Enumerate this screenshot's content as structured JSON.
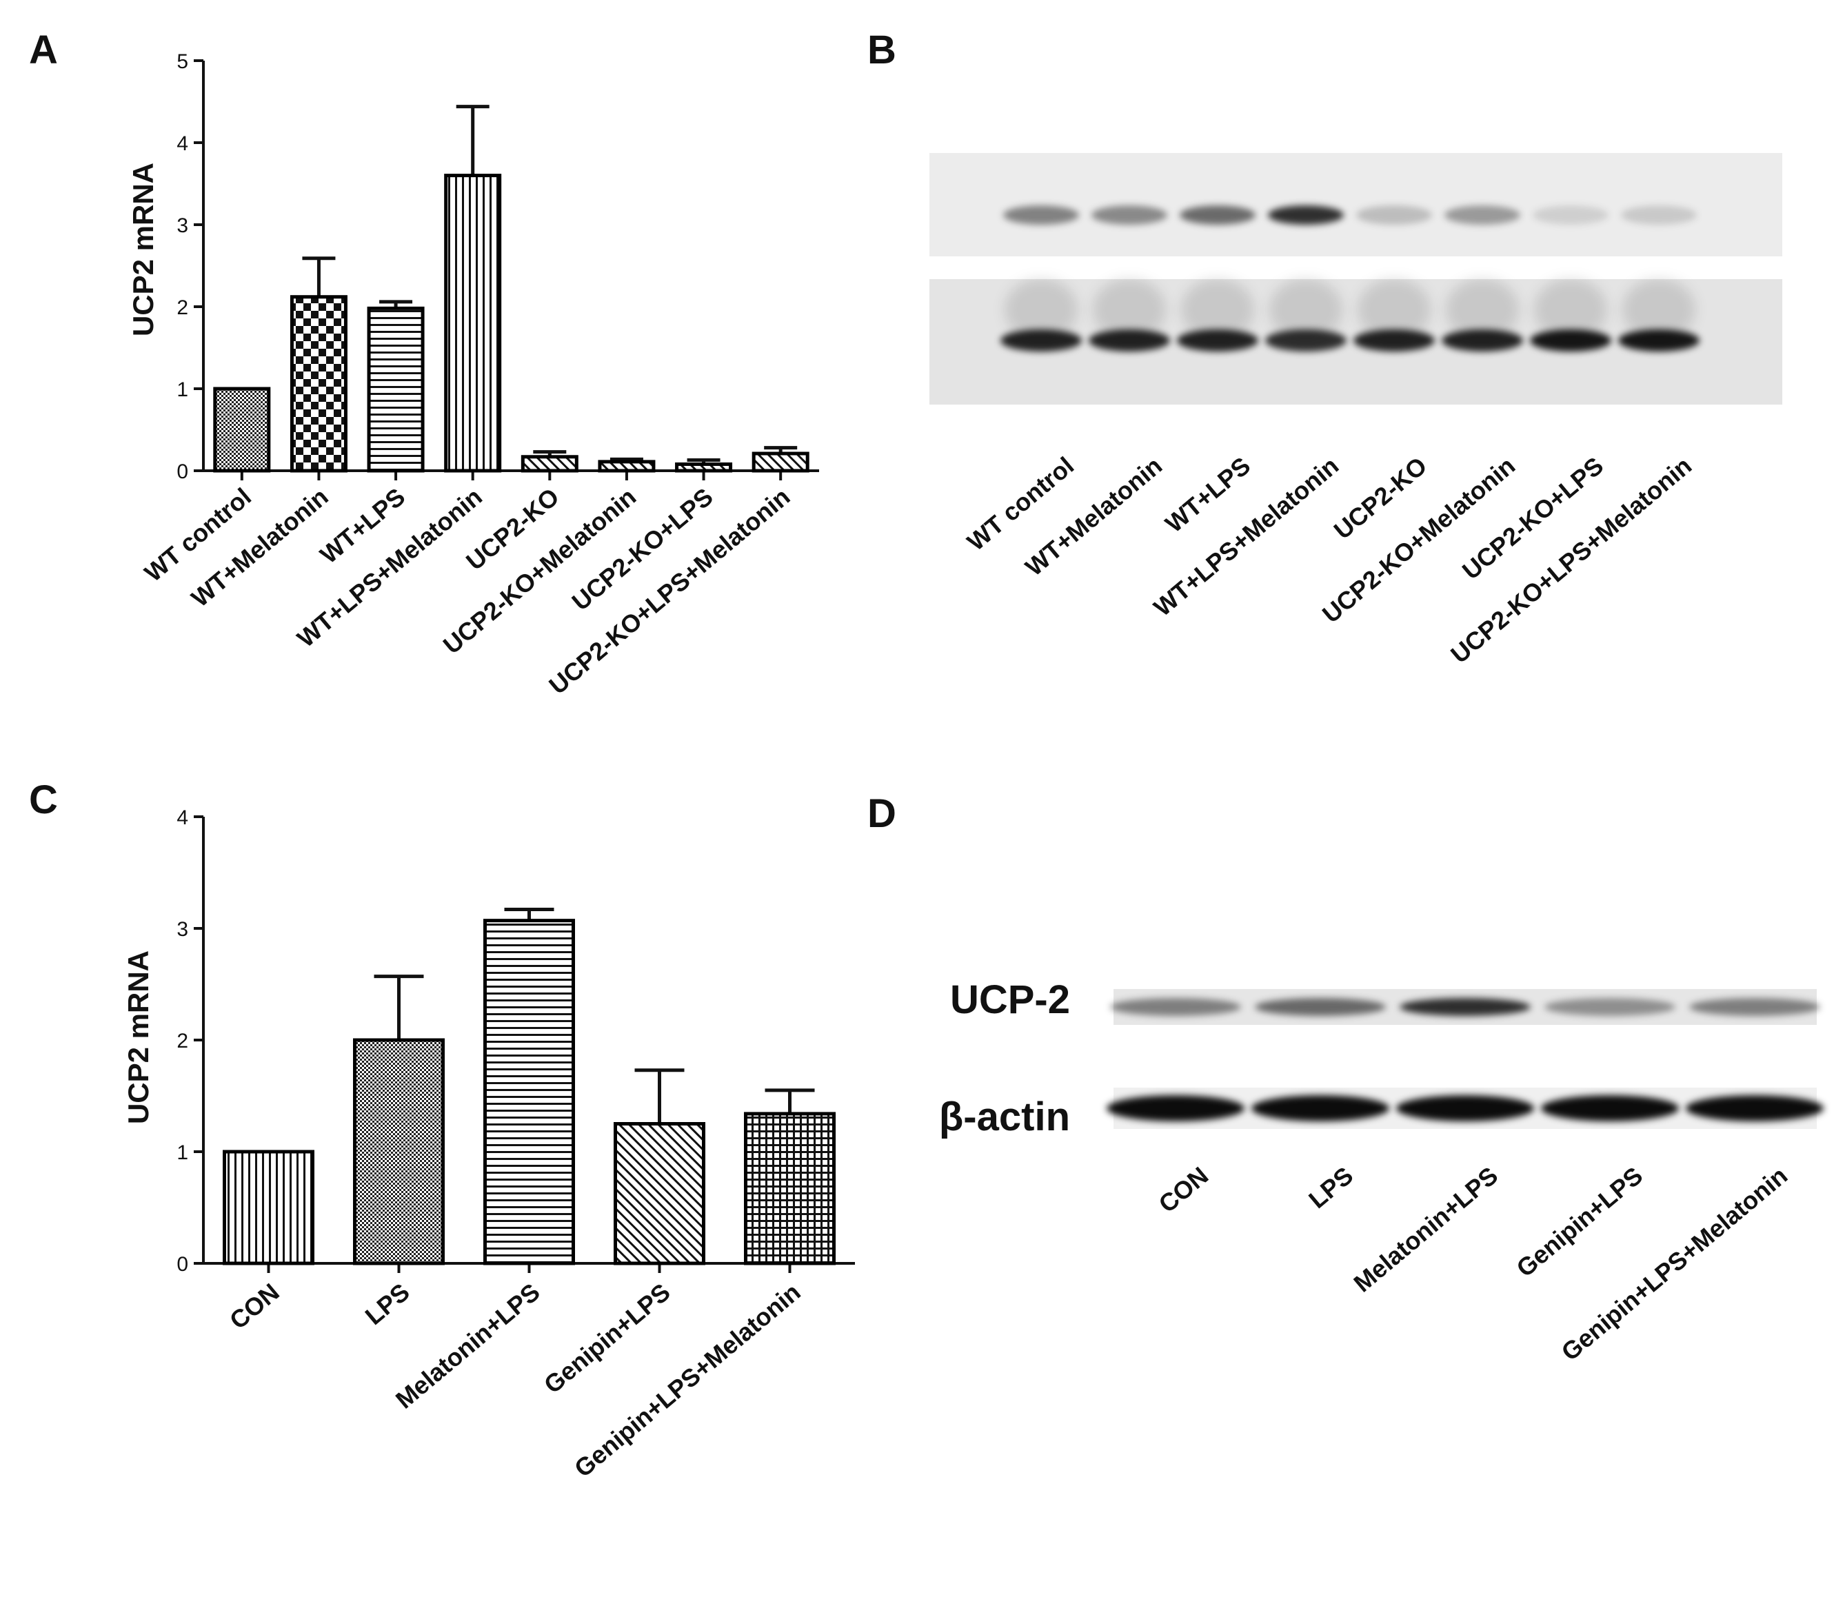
{
  "panels": {
    "a": "A",
    "b": "B",
    "c": "C",
    "d": "D"
  },
  "chart_data": [
    {
      "panel": "A",
      "type": "bar",
      "ylabel": "UCP2 mRNA",
      "ylim": [
        0,
        5
      ],
      "yticks": [
        "0",
        "1",
        "2",
        "3",
        "4",
        "5"
      ],
      "categories": [
        "WT control",
        "WT+Melatonin",
        "WT+LPS",
        "WT+LPS+Melatonin",
        "UCP2-KO",
        "UCP2-KO+Melatonin",
        "UCP2-KO+LPS",
        "UCP2-KO+LPS+Melatonin"
      ],
      "values": [
        1.0,
        2.12,
        1.98,
        3.6,
        0.17,
        0.11,
        0.08,
        0.21
      ],
      "errors": [
        0.0,
        0.47,
        0.08,
        0.84,
        0.06,
        0.03,
        0.05,
        0.07
      ],
      "patterns": [
        "dense-dots",
        "checker",
        "horizontal",
        "vertical",
        "diagonal",
        "diagonal",
        "diagonal",
        "diagonal"
      ],
      "grid": false,
      "bar_color": "#000000"
    },
    {
      "panel": "C",
      "type": "bar",
      "ylabel": "UCP2 mRNA",
      "ylim": [
        0,
        4
      ],
      "yticks": [
        "0",
        "1",
        "2",
        "3",
        "4"
      ],
      "categories": [
        "CON",
        "LPS",
        "Melatonin+LPS",
        "Genipin+LPS",
        "Genipin+LPS+Melatonin"
      ],
      "values": [
        1.0,
        2.0,
        3.07,
        1.25,
        1.34
      ],
      "errors": [
        0.0,
        0.57,
        0.1,
        0.48,
        0.21
      ],
      "patterns": [
        "vertical",
        "dense-dots",
        "horizontal",
        "diagonal",
        "grid"
      ],
      "grid": false,
      "bar_color": "#000000"
    }
  ],
  "blot_b": {
    "lanes": [
      "WT control",
      "WT+Melatonin",
      "WT+LPS",
      "WT+LPS+Melatonin",
      "UCP2-KO",
      "UCP2-KO+Melatonin",
      "UCP2-KO+LPS",
      "UCP2-KO+LPS+Melatonin"
    ],
    "top_band_intensity": [
      0.45,
      0.42,
      0.55,
      0.8,
      0.2,
      0.35,
      0.12,
      0.15
    ],
    "bottom_band_intensity": [
      0.85,
      0.85,
      0.85,
      0.8,
      0.85,
      0.85,
      0.9,
      0.9
    ]
  },
  "blot_d": {
    "row_labels": {
      "ucp2": "UCP-2",
      "actin": "β-actin"
    },
    "lanes": [
      "CON",
      "LPS",
      "Melatonin+LPS",
      "Genipin+LPS",
      "Genipin+LPS+Melatonin"
    ],
    "ucp2_intensity": [
      0.45,
      0.55,
      0.8,
      0.38,
      0.45
    ],
    "actin_intensity": [
      0.95,
      0.95,
      0.95,
      0.95,
      0.95
    ]
  }
}
